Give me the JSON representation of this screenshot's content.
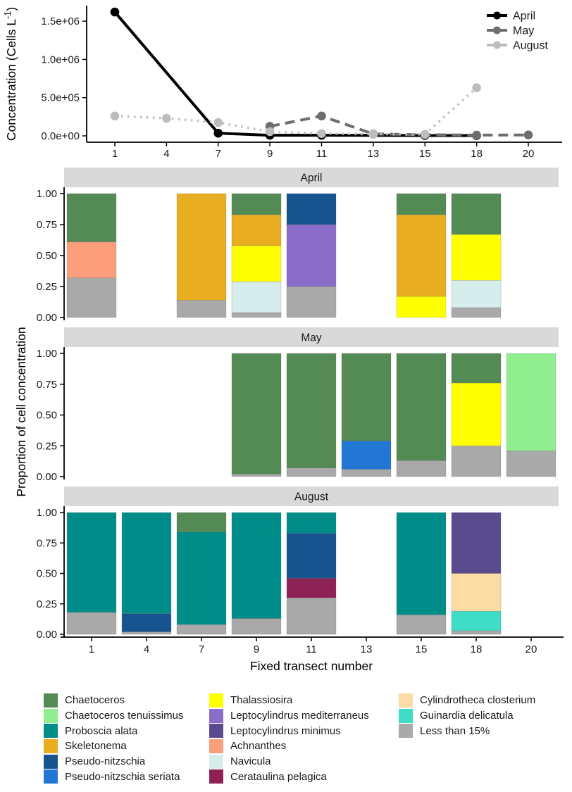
{
  "figure_title": "",
  "labels": {
    "line_ylabel": "Concentration (Cells L⁻¹)",
    "facet_ylabel": "Proportion of cell concentration",
    "xlabel": "Fixed transect number"
  },
  "style": {
    "strip_fill": "#D9D9D9",
    "axis_color": "#000000",
    "tick_label_color": "#1a1a1a"
  },
  "taxa": {
    "chaetoceros": {
      "label": "Chaetoceros",
      "color": "#548A54"
    },
    "tenuissimus": {
      "label": "Chaetoceros tenuissimus",
      "color": "#90EE90"
    },
    "proboscia": {
      "label": "Proboscia alata",
      "color": "#008D8A"
    },
    "skeletonema": {
      "label": "Skeletonema",
      "color": "#E9AD21"
    },
    "pseudo_nitzschia": {
      "label": "Pseudo-nitzschia",
      "color": "#17538F"
    },
    "pseudo_seriata": {
      "label": "Pseudo-nitzschia seriata",
      "color": "#2177D3"
    },
    "thalassiosira": {
      "label": "Thalassiosira",
      "color": "#FFFF00"
    },
    "lepto_mediterraneus": {
      "label": "Leptocylindrus mediterraneus",
      "color": "#8A6DC8"
    },
    "lepto_minimus": {
      "label": "Leptocylindrus minimus",
      "color": "#5A4A8E"
    },
    "achnanthes": {
      "label": "Achnanthes",
      "color": "#FB9E7C"
    },
    "navicula": {
      "label": "Navicula",
      "color": "#D7EDEB"
    },
    "cerataulina": {
      "label": "Cerataulina pelagica",
      "color": "#8D2154"
    },
    "cylindrotheca": {
      "label": "Cylindrotheca closterium",
      "color": "#FBDCA4"
    },
    "guinardia": {
      "label": "Guinardia delicatula",
      "color": "#3FDCC6"
    },
    "less15": {
      "label": "Less than 15%",
      "color": "#A9A9A9"
    }
  },
  "legend_columns": [
    [
      "chaetoceros",
      "tenuissimus",
      "proboscia",
      "skeletonema",
      "pseudo_nitzschia",
      "pseudo_seriata"
    ],
    [
      "thalassiosira",
      "lepto_mediterraneus",
      "lepto_minimus",
      "achnanthes",
      "navicula",
      "cerataulina"
    ],
    [
      "cylindrotheca",
      "guinardia",
      "less15"
    ]
  ],
  "chart_data": [
    {
      "type": "line",
      "title": "",
      "ylabel": "Concentration (Cells L⁻¹)",
      "xlabel": "",
      "x_categories": [
        1,
        4,
        7,
        9,
        11,
        13,
        15,
        18,
        20
      ],
      "yticks": {
        "labels": [
          "0.0e+00",
          "5.0e+05",
          "1.0e+06",
          "1.5e+06"
        ],
        "values": [
          0,
          500000,
          1000000,
          1500000
        ]
      },
      "ylim": [
        0,
        1670000
      ],
      "grid": false,
      "legend_position": "top-right",
      "series": [
        {
          "name": "April",
          "color": "#000000",
          "linestyle": "solid",
          "points": [
            [
              1,
              1620000
            ],
            [
              7,
              35000
            ],
            [
              9,
              8000
            ],
            [
              11,
              8000
            ],
            [
              15,
              5000
            ],
            [
              18,
              4000
            ]
          ]
        },
        {
          "name": "May",
          "color": "#6E6E6E",
          "linestyle": "dashed",
          "points": [
            [
              9,
              125000
            ],
            [
              11,
              260000
            ],
            [
              13,
              25000
            ],
            [
              15,
              15000
            ],
            [
              18,
              10000
            ],
            [
              20,
              12000
            ]
          ]
        },
        {
          "name": "August",
          "color": "#BDBDBD",
          "linestyle": "dotted",
          "points": [
            [
              1,
              260000
            ],
            [
              4,
              230000
            ],
            [
              7,
              175000
            ],
            [
              9,
              55000
            ],
            [
              11,
              30000
            ],
            [
              13,
              22000
            ],
            [
              15,
              20000
            ],
            [
              18,
              630000
            ]
          ]
        }
      ]
    },
    {
      "type": "stacked_bar",
      "facet": "April",
      "x_categories": [
        1,
        4,
        7,
        9,
        11,
        13,
        15,
        18,
        20
      ],
      "yticks": [
        "0.00",
        "0.25",
        "0.50",
        "0.75",
        "1.00"
      ],
      "ylim": [
        0,
        1
      ],
      "bars": [
        {
          "x": 1,
          "segments": [
            {
              "taxon": "less15",
              "value": 0.32
            },
            {
              "taxon": "achnanthes",
              "value": 0.29
            },
            {
              "taxon": "chaetoceros",
              "value": 0.39
            }
          ]
        },
        {
          "x": 7,
          "segments": [
            {
              "taxon": "less15",
              "value": 0.14
            },
            {
              "taxon": "skeletonema",
              "value": 0.86
            }
          ]
        },
        {
          "x": 9,
          "segments": [
            {
              "taxon": "less15",
              "value": 0.04
            },
            {
              "taxon": "navicula",
              "value": 0.25
            },
            {
              "taxon": "thalassiosira",
              "value": 0.29
            },
            {
              "taxon": "skeletonema",
              "value": 0.25
            },
            {
              "taxon": "chaetoceros",
              "value": 0.17
            }
          ]
        },
        {
          "x": 11,
          "segments": [
            {
              "taxon": "less15",
              "value": 0.25
            },
            {
              "taxon": "lepto_mediterraneus",
              "value": 0.5
            },
            {
              "taxon": "pseudo_nitzschia",
              "value": 0.25
            }
          ]
        },
        {
          "x": 15,
          "segments": [
            {
              "taxon": "thalassiosira",
              "value": 0.17
            },
            {
              "taxon": "skeletonema",
              "value": 0.66
            },
            {
              "taxon": "chaetoceros",
              "value": 0.17
            }
          ]
        },
        {
          "x": 18,
          "segments": [
            {
              "taxon": "less15",
              "value": 0.08
            },
            {
              "taxon": "navicula",
              "value": 0.22
            },
            {
              "taxon": "thalassiosira",
              "value": 0.37
            },
            {
              "taxon": "chaetoceros",
              "value": 0.33
            }
          ]
        }
      ]
    },
    {
      "type": "stacked_bar",
      "facet": "May",
      "x_categories": [
        1,
        4,
        7,
        9,
        11,
        13,
        15,
        18,
        20
      ],
      "yticks": [
        "0.00",
        "0.25",
        "0.50",
        "0.75",
        "1.00"
      ],
      "ylim": [
        0,
        1
      ],
      "bars": [
        {
          "x": 9,
          "segments": [
            {
              "taxon": "less15",
              "value": 0.02
            },
            {
              "taxon": "chaetoceros",
              "value": 0.98
            }
          ]
        },
        {
          "x": 11,
          "segments": [
            {
              "taxon": "less15",
              "value": 0.07
            },
            {
              "taxon": "chaetoceros",
              "value": 0.93
            }
          ]
        },
        {
          "x": 13,
          "segments": [
            {
              "taxon": "less15",
              "value": 0.06
            },
            {
              "taxon": "pseudo_seriata",
              "value": 0.23
            },
            {
              "taxon": "chaetoceros",
              "value": 0.71
            }
          ]
        },
        {
          "x": 15,
          "segments": [
            {
              "taxon": "less15",
              "value": 0.13
            },
            {
              "taxon": "chaetoceros",
              "value": 0.87
            }
          ]
        },
        {
          "x": 18,
          "segments": [
            {
              "taxon": "less15",
              "value": 0.25
            },
            {
              "taxon": "thalassiosira",
              "value": 0.51
            },
            {
              "taxon": "chaetoceros",
              "value": 0.24
            }
          ]
        },
        {
          "x": 20,
          "segments": [
            {
              "taxon": "less15",
              "value": 0.21
            },
            {
              "taxon": "tenuissimus",
              "value": 0.79
            }
          ]
        }
      ]
    },
    {
      "type": "stacked_bar",
      "facet": "August",
      "x_categories": [
        1,
        4,
        7,
        9,
        11,
        13,
        15,
        18,
        20
      ],
      "yticks": [
        "0.00",
        "0.25",
        "0.50",
        "0.75",
        "1.00"
      ],
      "ylim": [
        0,
        1
      ],
      "bars": [
        {
          "x": 1,
          "segments": [
            {
              "taxon": "less15",
              "value": 0.18
            },
            {
              "taxon": "proboscia",
              "value": 0.82
            }
          ]
        },
        {
          "x": 4,
          "segments": [
            {
              "taxon": "less15",
              "value": 0.02
            },
            {
              "taxon": "pseudo_nitzschia",
              "value": 0.15
            },
            {
              "taxon": "proboscia",
              "value": 0.83
            }
          ]
        },
        {
          "x": 7,
          "segments": [
            {
              "taxon": "less15",
              "value": 0.08
            },
            {
              "taxon": "proboscia",
              "value": 0.76
            },
            {
              "taxon": "chaetoceros",
              "value": 0.16
            }
          ]
        },
        {
          "x": 9,
          "segments": [
            {
              "taxon": "less15",
              "value": 0.13
            },
            {
              "taxon": "proboscia",
              "value": 0.87
            }
          ]
        },
        {
          "x": 11,
          "segments": [
            {
              "taxon": "less15",
              "value": 0.3
            },
            {
              "taxon": "cerataulina",
              "value": 0.16
            },
            {
              "taxon": "pseudo_nitzschia",
              "value": 0.37
            },
            {
              "taxon": "proboscia",
              "value": 0.17
            }
          ]
        },
        {
          "x": 15,
          "segments": [
            {
              "taxon": "less15",
              "value": 0.16
            },
            {
              "taxon": "proboscia",
              "value": 0.84
            }
          ]
        },
        {
          "x": 18,
          "segments": [
            {
              "taxon": "less15",
              "value": 0.03
            },
            {
              "taxon": "guinardia",
              "value": 0.16
            },
            {
              "taxon": "cylindrotheca",
              "value": 0.31
            },
            {
              "taxon": "lepto_minimus",
              "value": 0.5
            }
          ]
        }
      ]
    }
  ]
}
